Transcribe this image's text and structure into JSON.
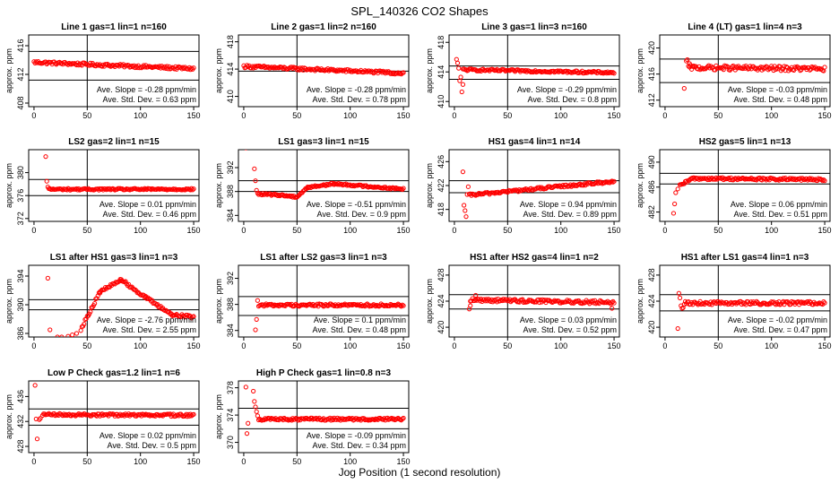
{
  "figure": {
    "title": "SPL_140326  CO2 Shapes",
    "xlabel": "Jog Position (1 second resolution)"
  },
  "chart_data": [
    {
      "type": "scatter",
      "title": "Line 1 gas=1 lin=1 n=160",
      "ylabel": "approx. ppm",
      "xlim": [
        -5,
        155
      ],
      "ylim": [
        407.5,
        417.5
      ],
      "xticks": [
        0,
        50,
        100,
        150
      ],
      "yticks": [
        408,
        412,
        416
      ],
      "vline": 50,
      "hlines": [
        411.2,
        415.2
      ],
      "series": [
        {
          "segments": [
            {
              "x0": 0,
              "x1": 150,
              "y0": 413.7,
              "y1": 412.8,
              "noise": 0.2
            }
          ]
        }
      ],
      "stats": {
        "slope": "Ave. Slope = -0.28  ppm/min",
        "sd": "Ave. Std. Dev. = 0.63  ppm"
      },
      "color": "#ff0000"
    },
    {
      "type": "scatter",
      "title": "Line 2 gas=1 lin=2 n=160",
      "ylabel": "approx. ppm",
      "xlim": [
        -5,
        155
      ],
      "ylim": [
        408.5,
        419
      ],
      "xticks": [
        0,
        50,
        100,
        150
      ],
      "yticks": [
        410,
        414,
        418
      ],
      "vline": 50,
      "hlines": [
        413.7,
        415.8
      ],
      "series": [
        {
          "segments": [
            {
              "x0": 0,
              "x1": 150,
              "y0": 414.4,
              "y1": 413.4,
              "noise": 0.2
            }
          ]
        }
      ],
      "stats": {
        "slope": "Ave. Slope = -0.28  ppm/min",
        "sd": "Ave. Std. Dev. = 0.78  ppm"
      },
      "color": "#ff0000"
    },
    {
      "type": "scatter",
      "title": "Line 3 gas=1 lin=3 n=160",
      "ylabel": "approx. ppm",
      "xlim": [
        -5,
        155
      ],
      "ylim": [
        409.3,
        419
      ],
      "xticks": [
        0,
        50,
        100,
        150
      ],
      "yticks": [
        410,
        414,
        418
      ],
      "vline": 50,
      "hlines": [
        414.8,
        413.0
      ],
      "series": [
        {
          "segments": [
            {
              "x0": 8,
              "x1": 150,
              "y0": 414.3,
              "y1": 413.9,
              "noise": 0.15
            }
          ],
          "points": [
            [
              2,
              415.7
            ],
            [
              3,
              415.2
            ],
            [
              4,
              414.5
            ],
            [
              5,
              412.8
            ],
            [
              6,
              413.3
            ],
            [
              7,
              411.3
            ],
            [
              8,
              412.3
            ]
          ]
        }
      ],
      "stats": {
        "slope": "Ave. Slope = -0.29  ppm/min",
        "sd": "Ave. Std. Dev. = 0.8  ppm"
      },
      "color": "#ff0000"
    },
    {
      "type": "scatter",
      "title": "Line 4 (LT) gas=1 lin=4 n=3",
      "ylabel": "approx. ppm",
      "xlim": [
        -5,
        155
      ],
      "ylim": [
        411,
        422
      ],
      "xticks": [
        0,
        50,
        100,
        150
      ],
      "yticks": [
        412,
        416,
        420
      ],
      "vline": 50,
      "hlines": [
        418.3,
        414.7
      ],
      "series": [
        {
          "segments": [
            {
              "x0": 22,
              "x1": 150,
              "y0": 417.0,
              "y1": 416.8,
              "noise": 0.35
            }
          ],
          "points": [
            [
              18,
              413.8
            ],
            [
              20,
              418.0
            ],
            [
              21,
              418.2
            ],
            [
              23,
              417.6
            ]
          ]
        }
      ],
      "stats": {
        "slope": "Ave. Slope = -0.03  ppm/min",
        "sd": "Ave. Std. Dev. = 0.48  ppm"
      },
      "color": "#ff0000"
    },
    {
      "type": "scatter",
      "title": "LS2 gas=2 lin=1 n=15",
      "ylabel": "approx. ppm",
      "xlim": [
        -5,
        155
      ],
      "ylim": [
        371.5,
        384
      ],
      "xticks": [
        0,
        50,
        100,
        150
      ],
      "yticks": [
        372,
        376,
        380
      ],
      "vline": 50,
      "hlines": [
        378.8,
        376.0
      ],
      "series": [
        {
          "segments": [
            {
              "x0": 15,
              "x1": 150,
              "y0": 377.1,
              "y1": 377.1,
              "noise": 0.15
            }
          ],
          "points": [
            [
              11,
              382.8
            ],
            [
              12,
              378.5
            ],
            [
              13,
              377.5
            ],
            [
              14,
              377.2
            ]
          ]
        }
      ],
      "stats": {
        "slope": "Ave. Slope = 0.01  ppm/min",
        "sd": "Ave. Std. Dev. = 0.46  ppm"
      },
      "color": "#ff0000"
    },
    {
      "type": "scatter",
      "title": "LS1 gas=3 lin=1 n=15",
      "ylabel": "approx. ppm",
      "xlim": [
        -5,
        155
      ],
      "ylim": [
        383,
        395
      ],
      "xticks": [
        0,
        50,
        100,
        150
      ],
      "yticks": [
        384,
        388,
        392
      ],
      "vline": 50,
      "hlines": [
        389.8,
        388.0
      ],
      "series": [
        {
          "segments": [
            {
              "x0": 13,
              "x1": 35,
              "y0": 387.6,
              "y1": 387.4,
              "noise": 0.15
            },
            {
              "x0": 35,
              "x1": 50,
              "y0": 387.4,
              "y1": 387.1,
              "noise": 0.15
            },
            {
              "x0": 50,
              "x1": 60,
              "y0": 387.1,
              "y1": 388.7,
              "noise": 0.15
            },
            {
              "x0": 60,
              "x1": 85,
              "y0": 388.7,
              "y1": 389.3,
              "noise": 0.15
            },
            {
              "x0": 85,
              "x1": 150,
              "y0": 389.3,
              "y1": 388.4,
              "noise": 0.15
            }
          ],
          "points": [
            [
              2,
              395.3
            ],
            [
              10,
              391.8
            ],
            [
              11,
              389.8
            ],
            [
              12,
              388.2
            ]
          ]
        }
      ],
      "stats": {
        "slope": "Ave. Slope = -0.51  ppm/min",
        "sd": "Ave. Std. Dev. = 0.9  ppm"
      },
      "color": "#ff0000"
    },
    {
      "type": "scatter",
      "title": "HS1 gas=4 lin=1 n=14",
      "ylabel": "approx. ppm",
      "xlim": [
        -5,
        155
      ],
      "ylim": [
        416,
        428
      ],
      "xticks": [
        0,
        50,
        100,
        150
      ],
      "yticks": [
        418,
        422,
        426
      ],
      "vline": 50,
      "hlines": [
        422.8,
        420.8
      ],
      "series": [
        {
          "segments": [
            {
              "x0": 14,
              "x1": 150,
              "y0": 420.4,
              "y1": 422.7,
              "noise": 0.2
            }
          ],
          "points": [
            [
              8,
              424.3
            ],
            [
              9,
              418.7
            ],
            [
              10,
              417.8
            ],
            [
              11,
              416.8
            ],
            [
              12,
              420.5
            ],
            [
              13,
              421.8
            ]
          ]
        }
      ],
      "stats": {
        "slope": "Ave. Slope = 0.94  ppm/min",
        "sd": "Ave. Std. Dev. = 0.89  ppm"
      },
      "color": "#ff0000"
    },
    {
      "type": "scatter",
      "title": "HS2 gas=5 lin=1 n=13",
      "ylabel": "approx. ppm",
      "xlim": [
        -5,
        155
      ],
      "ylim": [
        480.5,
        492
      ],
      "xticks": [
        0,
        50,
        100,
        150
      ],
      "yticks": [
        482,
        486,
        490
      ],
      "vline": 50,
      "hlines": [
        488.2,
        486.5
      ],
      "series": [
        {
          "segments": [
            {
              "x0": 14,
              "x1": 25,
              "y0": 486.2,
              "y1": 487.3,
              "noise": 0.2
            },
            {
              "x0": 25,
              "x1": 150,
              "y0": 487.4,
              "y1": 487.2,
              "noise": 0.2
            }
          ],
          "points": [
            [
              8,
              481.8
            ],
            [
              9,
              483.3
            ],
            [
              10,
              485.1
            ],
            [
              12,
              485.7
            ]
          ]
        }
      ],
      "stats": {
        "slope": "Ave. Slope = 0.06  ppm/min",
        "sd": "Ave. Std. Dev. = 0.51  ppm"
      },
      "color": "#ff0000"
    },
    {
      "type": "scatter",
      "title": "LS1 after HS1 gas=3 lin=1 n=3",
      "ylabel": "approx. ppm",
      "xlim": [
        -5,
        155
      ],
      "ylim": [
        385.5,
        395.5
      ],
      "xticks": [
        0,
        50,
        100,
        150
      ],
      "yticks": [
        386,
        390,
        394
      ],
      "vline": 50,
      "hlines": [
        390.7,
        389.3
      ],
      "series": [
        {
          "segments": [
            {
              "x0": 44,
              "x1": 62,
              "y0": 386.6,
              "y1": 391.8,
              "noise": 0.2
            },
            {
              "x0": 62,
              "x1": 82,
              "y0": 391.8,
              "y1": 393.5,
              "noise": 0.2
            },
            {
              "x0": 82,
              "x1": 105,
              "y0": 393.5,
              "y1": 391.0,
              "noise": 0.2
            },
            {
              "x0": 105,
              "x1": 130,
              "y0": 391.0,
              "y1": 388.6,
              "noise": 0.2
            },
            {
              "x0": 130,
              "x1": 150,
              "y0": 388.6,
              "y1": 388.3,
              "noise": 0.2
            }
          ],
          "points": [
            [
              13,
              393.7
            ],
            [
              15,
              386.5
            ],
            [
              22,
              385.5
            ],
            [
              26,
              385.5
            ],
            [
              32,
              385.6
            ],
            [
              36,
              385.8
            ],
            [
              40,
              386.0
            ]
          ]
        }
      ],
      "stats": {
        "slope": "Ave. Slope = -2.76  ppm/min",
        "sd": "Ave. Std. Dev. = 2.55  ppm"
      },
      "color": "#ff0000"
    },
    {
      "type": "scatter",
      "title": "LS1 after LS2 gas=3 lin=1 n=3",
      "ylabel": "approx. ppm",
      "xlim": [
        -5,
        155
      ],
      "ylim": [
        383,
        394
      ],
      "xticks": [
        0,
        50,
        100,
        150
      ],
      "yticks": [
        384,
        388,
        392
      ],
      "vline": 50,
      "hlines": [
        389.2,
        386.3
      ],
      "series": [
        {
          "segments": [
            {
              "x0": 14,
              "x1": 150,
              "y0": 387.9,
              "y1": 387.9,
              "noise": 0.2
            }
          ],
          "points": [
            [
              11,
              384.1
            ],
            [
              12,
              385.7
            ],
            [
              13,
              388.6
            ]
          ]
        }
      ],
      "stats": {
        "slope": "Ave. Slope = 0.1  ppm/min",
        "sd": "Ave. Std. Dev. = 0.48  ppm"
      },
      "color": "#ff0000"
    },
    {
      "type": "scatter",
      "title": "HS1 after HS2 gas=4 lin=1 n=2",
      "ylabel": "approx. ppm",
      "xlim": [
        -5,
        155
      ],
      "ylim": [
        418.5,
        429.5
      ],
      "xticks": [
        0,
        50,
        100,
        150
      ],
      "yticks": [
        420,
        424,
        428
      ],
      "vline": 50,
      "hlines": [
        425.0,
        422.8
      ],
      "series": [
        {
          "segments": [
            {
              "x0": 15,
              "x1": 150,
              "y0": 424.2,
              "y1": 423.8,
              "noise": 0.25
            }
          ],
          "points": [
            [
              14,
              422.8
            ],
            [
              15,
              423.3
            ],
            [
              20,
              424.9
            ],
            [
              148,
              422.9
            ]
          ]
        }
      ],
      "stats": {
        "slope": "Ave. Slope = 0.03  ppm/min",
        "sd": "Ave. Std. Dev. = 0.52  ppm"
      },
      "color": "#ff0000"
    },
    {
      "type": "scatter",
      "title": "HS1 after LS1 gas=4 lin=1 n=3",
      "ylabel": "approx. ppm",
      "xlim": [
        -5,
        155
      ],
      "ylim": [
        418.5,
        429.5
      ],
      "xticks": [
        0,
        50,
        100,
        150
      ],
      "yticks": [
        420,
        424,
        428
      ],
      "vline": 50,
      "hlines": [
        425.0,
        422.5
      ],
      "series": [
        {
          "segments": [
            {
              "x0": 18,
              "x1": 150,
              "y0": 423.7,
              "y1": 423.7,
              "noise": 0.25
            }
          ],
          "points": [
            [
              12,
              419.8
            ],
            [
              13,
              425.2
            ],
            [
              14,
              424.5
            ],
            [
              15,
              423.3
            ],
            [
              16,
              422.9
            ],
            [
              17,
              423.0
            ]
          ]
        }
      ],
      "stats": {
        "slope": "Ave. Slope = -0.02  ppm/min",
        "sd": "Ave. Std. Dev. = 0.47  ppm"
      },
      "color": "#ff0000"
    },
    {
      "type": "scatter",
      "title": "Low P Check gas=1.2 lin=1 n=6",
      "ylabel": "approx. ppm",
      "xlim": [
        -5,
        155
      ],
      "ylim": [
        427,
        438.5
      ],
      "xticks": [
        0,
        50,
        100,
        150
      ],
      "yticks": [
        428,
        432,
        436
      ],
      "vline": 50,
      "hlines": [
        434.0,
        431.4
      ],
      "series": [
        {
          "segments": [
            {
              "x0": 8,
              "x1": 150,
              "y0": 433.1,
              "y1": 433.0,
              "noise": 0.2
            }
          ],
          "points": [
            [
              1,
              437.8
            ],
            [
              2,
              432.4
            ],
            [
              3,
              429.2
            ],
            [
              5,
              432.3
            ],
            [
              6,
              432.5
            ]
          ]
        }
      ],
      "stats": {
        "slope": "Ave. Slope = 0.02  ppm/min",
        "sd": "Ave. Std. Dev. = 0.5  ppm"
      },
      "color": "#ff0000"
    },
    {
      "type": "scatter",
      "title": "High P Check gas=1 lin=0.8 n=3",
      "ylabel": "approx. ppm",
      "xlim": [
        -5,
        155
      ],
      "ylim": [
        368.5,
        379
      ],
      "xticks": [
        0,
        50,
        100,
        150
      ],
      "yticks": [
        370,
        374,
        378
      ],
      "vline": 50,
      "hlines": [
        375.0,
        372.0
      ],
      "series": [
        {
          "segments": [
            {
              "x0": 14,
              "x1": 150,
              "y0": 373.4,
              "y1": 373.4,
              "noise": 0.18
            }
          ],
          "points": [
            [
              2,
              378.1
            ],
            [
              3,
              371.3
            ],
            [
              4,
              372.8
            ],
            [
              9,
              377.5
            ],
            [
              10,
              376.0
            ],
            [
              11,
              375.2
            ],
            [
              12,
              374.5
            ],
            [
              13,
              373.9
            ]
          ]
        }
      ],
      "stats": {
        "slope": "Ave. Slope = -0.09  ppm/min",
        "sd": "Ave. Std. Dev. = 0.34  ppm"
      },
      "color": "#ff0000"
    }
  ]
}
